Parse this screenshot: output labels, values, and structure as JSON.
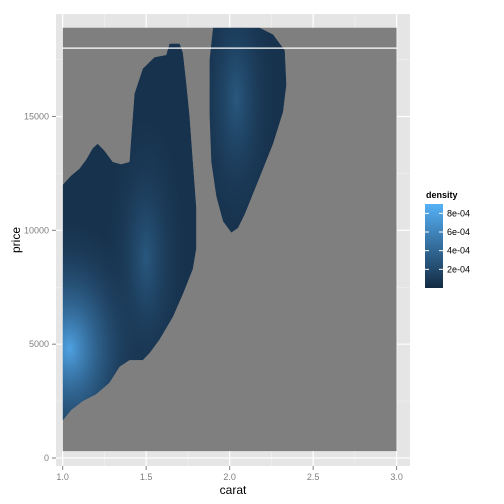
{
  "chart_data": {
    "type": "heatmap",
    "xlabel": "carat",
    "ylabel": "price",
    "xlim": [
      0.96,
      3.08
    ],
    "ylim": [
      -350,
      19500
    ],
    "x_ticks": [
      {
        "value": 1.0,
        "label": "1.0"
      },
      {
        "value": 1.5,
        "label": "1.5"
      },
      {
        "value": 2.0,
        "label": "2.0"
      },
      {
        "value": 2.5,
        "label": "2.5"
      },
      {
        "value": 3.0,
        "label": "3.0"
      }
    ],
    "y_ticks": [
      {
        "value": 0,
        "label": "0"
      },
      {
        "value": 5000,
        "label": "5000"
      },
      {
        "value": 10000,
        "label": "10000"
      },
      {
        "value": 15000,
        "label": "15000"
      }
    ],
    "grid": true,
    "raster_extent": {
      "x": [
        1.0,
        3.0
      ],
      "y": [
        300,
        18900
      ]
    },
    "raster_fill": "#7f7f7f",
    "reference_line": {
      "price": 18000,
      "color": "#ffffff"
    },
    "density_regions": [
      {
        "name": "left-lobe",
        "polygon": [
          [
            1.0,
            1650
          ],
          [
            1.05,
            2100
          ],
          [
            1.12,
            2500
          ],
          [
            1.2,
            2800
          ],
          [
            1.28,
            3300
          ],
          [
            1.34,
            4000
          ],
          [
            1.4,
            4300
          ],
          [
            1.48,
            4300
          ],
          [
            1.52,
            4600
          ],
          [
            1.58,
            5200
          ],
          [
            1.66,
            6200
          ],
          [
            1.72,
            7200
          ],
          [
            1.78,
            8300
          ],
          [
            1.8,
            9200
          ],
          [
            1.8,
            11000
          ],
          [
            1.78,
            13000
          ],
          [
            1.76,
            15000
          ],
          [
            1.74,
            16500
          ],
          [
            1.72,
            17800
          ],
          [
            1.7,
            18200
          ],
          [
            1.64,
            18200
          ],
          [
            1.62,
            17700
          ],
          [
            1.55,
            17600
          ],
          [
            1.48,
            17100
          ],
          [
            1.43,
            16000
          ],
          [
            1.41,
            14000
          ],
          [
            1.4,
            13000
          ],
          [
            1.35,
            12900
          ],
          [
            1.3,
            13000
          ],
          [
            1.25,
            13500
          ],
          [
            1.21,
            13800
          ],
          [
            1.18,
            13600
          ],
          [
            1.14,
            13100
          ],
          [
            1.1,
            12700
          ],
          [
            1.05,
            12400
          ],
          [
            1.0,
            12000
          ]
        ],
        "density_peak": {
          "carat": 1.04,
          "price": 4800,
          "value": 0.0008
        },
        "density_secondary": {
          "carat": 1.5,
          "price": 8800,
          "value": 0.0003
        },
        "density_base": 5e-05
      },
      {
        "name": "right-lobe",
        "polygon": [
          [
            1.9,
            18900
          ],
          [
            2.18,
            18900
          ],
          [
            2.26,
            18600
          ],
          [
            2.33,
            17900
          ],
          [
            2.34,
            16400
          ],
          [
            2.32,
            15200
          ],
          [
            2.26,
            13800
          ],
          [
            2.2,
            12700
          ],
          [
            2.14,
            11600
          ],
          [
            2.09,
            10700
          ],
          [
            2.05,
            10100
          ],
          [
            2.01,
            9900
          ],
          [
            1.96,
            10400
          ],
          [
            1.92,
            11500
          ],
          [
            1.89,
            13000
          ],
          [
            1.88,
            15000
          ],
          [
            1.88,
            17500
          ]
        ],
        "density_peak": {
          "carat": 2.04,
          "price": 15800,
          "value": 0.0003
        },
        "density_base": 5e-05
      }
    ],
    "legend": {
      "title": "density",
      "position": "right",
      "scale_min": 0,
      "scale_max": 0.0009,
      "color_low": "#132b43",
      "color_high": "#56b1f7",
      "entries": [
        {
          "value": 0.0002,
          "label": "2e-04"
        },
        {
          "value": 0.0004,
          "label": "4e-04"
        },
        {
          "value": 0.0006,
          "label": "6e-04"
        },
        {
          "value": 0.0008,
          "label": "8e-04"
        }
      ]
    },
    "colors": {
      "panel_background": "#e5e5e5",
      "grid_major": "#ffffff",
      "grid_minor": "#f2f2f2",
      "tick_color": "#7f7f7f"
    }
  }
}
